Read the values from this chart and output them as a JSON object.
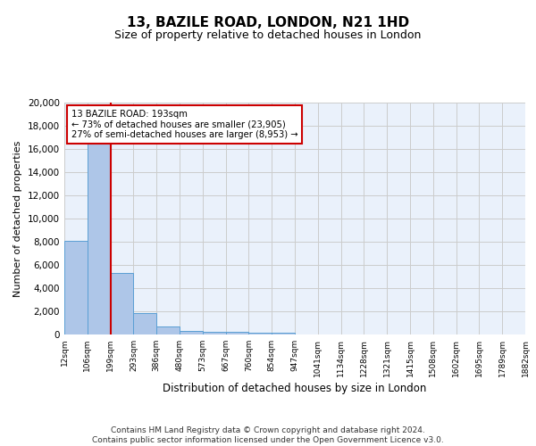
{
  "title1": "13, BAZILE ROAD, LONDON, N21 1HD",
  "title2": "Size of property relative to detached houses in London",
  "xlabel": "Distribution of detached houses by size in London",
  "ylabel": "Number of detached properties",
  "footer": "Contains HM Land Registry data © Crown copyright and database right 2024.\nContains public sector information licensed under the Open Government Licence v3.0.",
  "bin_labels": [
    "12sqm",
    "106sqm",
    "199sqm",
    "293sqm",
    "386sqm",
    "480sqm",
    "573sqm",
    "667sqm",
    "760sqm",
    "854sqm",
    "947sqm",
    "1041sqm",
    "1134sqm",
    "1228sqm",
    "1321sqm",
    "1415sqm",
    "1508sqm",
    "1602sqm",
    "1695sqm",
    "1789sqm",
    "1882sqm"
  ],
  "bar_values": [
    8100,
    16500,
    5300,
    1850,
    700,
    320,
    230,
    200,
    180,
    130,
    0,
    0,
    0,
    0,
    0,
    0,
    0,
    0,
    0,
    0
  ],
  "bar_color": "#aec6e8",
  "bar_edge_color": "#5a9fd4",
  "vline_x": 2,
  "vline_color": "#cc0000",
  "annotation_text": "13 BAZILE ROAD: 193sqm\n← 73% of detached houses are smaller (23,905)\n27% of semi-detached houses are larger (8,953) →",
  "annotation_box_color": "white",
  "annotation_box_edge": "#cc0000",
  "ylim": [
    0,
    20000
  ],
  "yticks": [
    0,
    2000,
    4000,
    6000,
    8000,
    10000,
    12000,
    14000,
    16000,
    18000,
    20000
  ],
  "grid_color": "#cccccc",
  "bg_color": "#eaf1fb",
  "n_bins": 20
}
